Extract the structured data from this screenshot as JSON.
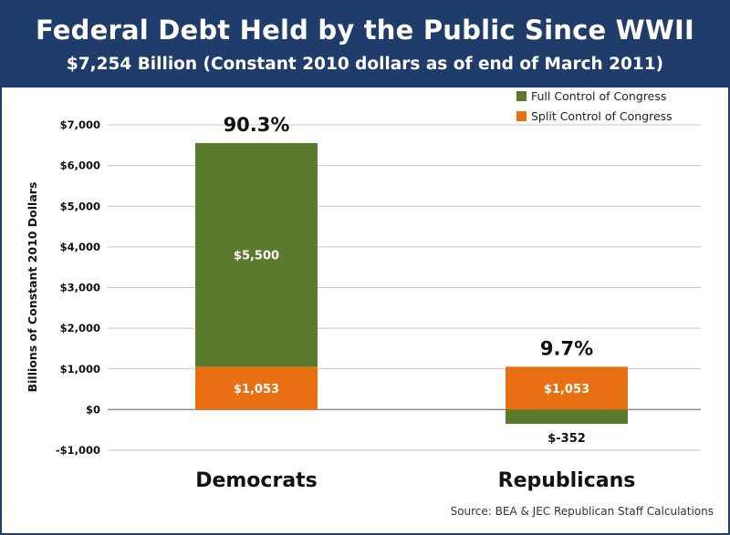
{
  "colors": {
    "header_bg": "#1f3c6b",
    "full_control": "#5a7a2e",
    "split_control": "#e87012",
    "grid": "#c8c8c8"
  },
  "chart_data": {
    "type": "bar",
    "stacked": true,
    "title": "Federal Debt Held by the Public Since WWII",
    "subtitle": "$7,254 Billion (Constant 2010 dollars as of end of March 2011)",
    "ylabel": "Billions of Constant 2010 Dollars",
    "xlabel": "",
    "categories": [
      "Democrats",
      "Republicans"
    ],
    "ylim": [
      -1000,
      7000
    ],
    "yticks": [
      {
        "value": 7000,
        "label": "$7,000"
      },
      {
        "value": 6000,
        "label": "$6,000"
      },
      {
        "value": 5000,
        "label": "$5,000"
      },
      {
        "value": 4000,
        "label": "$4,000"
      },
      {
        "value": 3000,
        "label": "$3,000"
      },
      {
        "value": 2000,
        "label": "$2,000"
      },
      {
        "value": 1000,
        "label": "$1,000"
      },
      {
        "value": 0,
        "label": "$0"
      },
      {
        "value": -1000,
        "label": "-$1,000"
      }
    ],
    "grid": true,
    "legend_position": "top-right",
    "series": [
      {
        "name": "Split Control of Congress",
        "color": "#e87012",
        "values": [
          1053,
          1053
        ],
        "labels": [
          "$1,053",
          "$1,053"
        ]
      },
      {
        "name": "Full Control of Congress",
        "color": "#5a7a2e",
        "values": [
          5500,
          -352
        ],
        "labels": [
          "$5,500",
          "$-352"
        ]
      }
    ],
    "annotations": [
      "90.3%",
      "9.7%"
    ],
    "source": "Source: BEA & JEC Republican Staff Calculations"
  }
}
